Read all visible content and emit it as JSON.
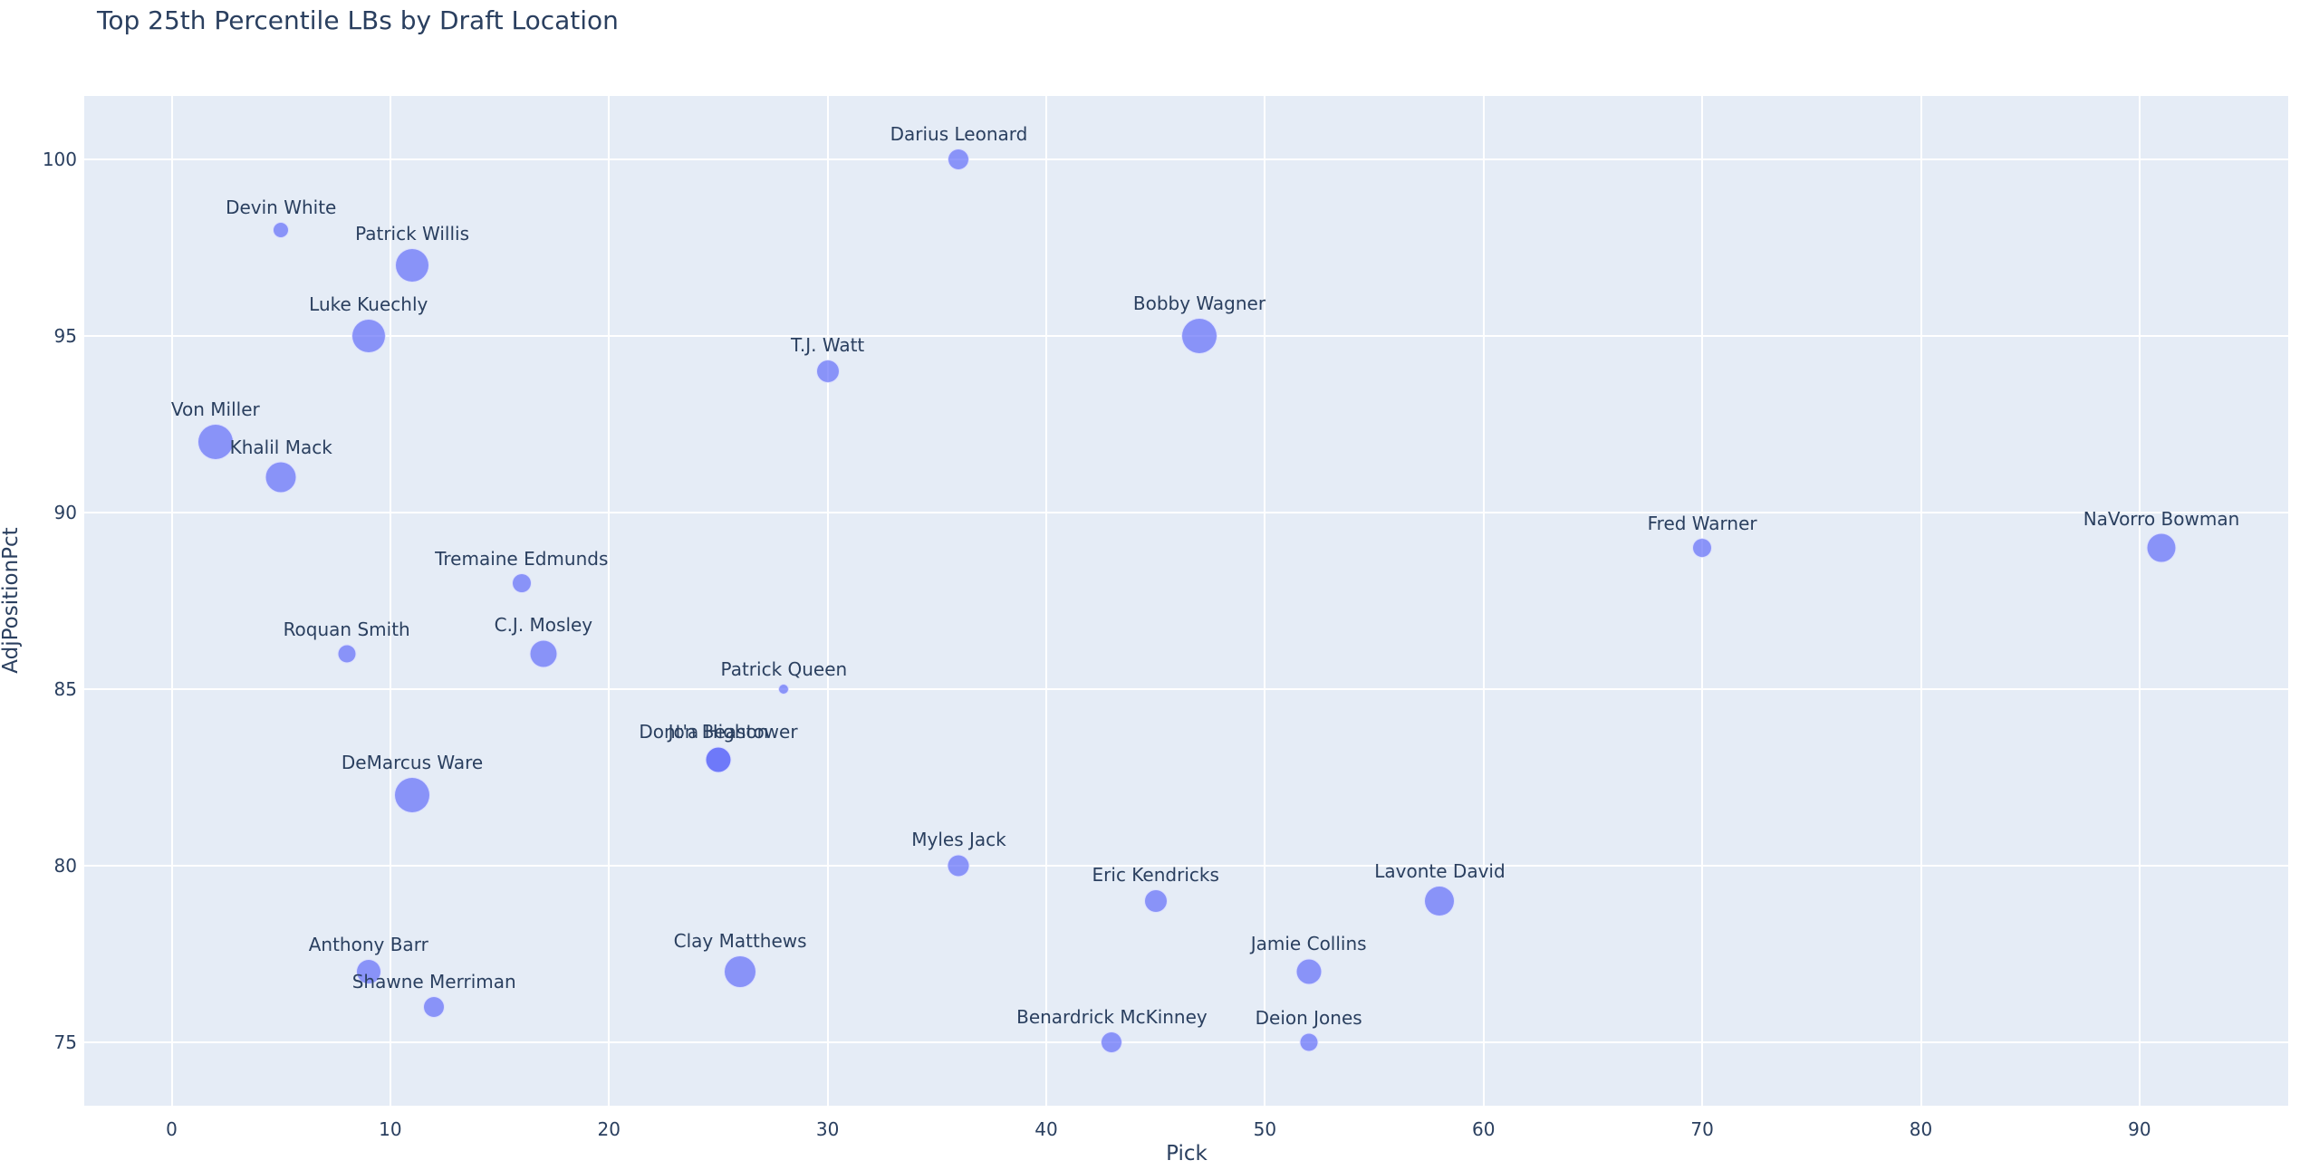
{
  "chart_data": {
    "type": "scatter",
    "title": "Top 25th Percentile LBs by Draft Location",
    "xlabel": "Pick",
    "ylabel": "AdjPositionPct",
    "xlim": [
      -4,
      96.8
    ],
    "ylim": [
      73.2,
      101.8
    ],
    "xticks": [
      0,
      10,
      20,
      30,
      40,
      50,
      60,
      70,
      80,
      90
    ],
    "yticks": [
      75,
      80,
      85,
      90,
      95,
      100
    ],
    "grid": true,
    "legend": "none",
    "marker_color": "#636efa",
    "marker_opacity": 0.7,
    "text_position": "top center",
    "points": [
      {
        "name": "Darius Leonard",
        "x": 36,
        "y": 100,
        "size": 24
      },
      {
        "name": "Devin White",
        "x": 5,
        "y": 98,
        "size": 18
      },
      {
        "name": "Patrick Willis",
        "x": 11,
        "y": 97,
        "size": 38
      },
      {
        "name": "Luke Kuechly",
        "x": 9,
        "y": 95,
        "size": 38
      },
      {
        "name": "Bobby Wagner",
        "x": 47,
        "y": 95,
        "size": 40
      },
      {
        "name": "T.J. Watt",
        "x": 30,
        "y": 94,
        "size": 26
      },
      {
        "name": "Von Miller",
        "x": 2,
        "y": 92,
        "size": 40
      },
      {
        "name": "Khalil Mack",
        "x": 5,
        "y": 91,
        "size": 35
      },
      {
        "name": "Fred Warner",
        "x": 70,
        "y": 89,
        "size": 22
      },
      {
        "name": "NaVorro Bowman",
        "x": 91,
        "y": 89,
        "size": 33
      },
      {
        "name": "Tremaine Edmunds",
        "x": 16,
        "y": 88,
        "size": 22
      },
      {
        "name": "Roquan Smith",
        "x": 8,
        "y": 86,
        "size": 21
      },
      {
        "name": "C.J. Mosley",
        "x": 17,
        "y": 86,
        "size": 31
      },
      {
        "name": "Patrick Queen",
        "x": 28,
        "y": 85,
        "size": 12
      },
      {
        "name": "Dont'a Hightower",
        "x": 25,
        "y": 83,
        "size": 29
      },
      {
        "name": "Jon Beason",
        "x": 25,
        "y": 83,
        "size": 29
      },
      {
        "name": "DeMarcus Ware",
        "x": 11,
        "y": 82,
        "size": 40
      },
      {
        "name": "Myles Jack",
        "x": 36,
        "y": 80,
        "size": 25
      },
      {
        "name": "Eric Kendricks",
        "x": 45,
        "y": 79,
        "size": 26
      },
      {
        "name": "Lavonte David",
        "x": 58,
        "y": 79,
        "size": 34
      },
      {
        "name": "Anthony Barr",
        "x": 9,
        "y": 77,
        "size": 28
      },
      {
        "name": "Clay Matthews",
        "x": 26,
        "y": 77,
        "size": 36
      },
      {
        "name": "Jamie Collins",
        "x": 52,
        "y": 77,
        "size": 29
      },
      {
        "name": "Shawne Merriman",
        "x": 12,
        "y": 76,
        "size": 24
      },
      {
        "name": "Benardrick McKinney",
        "x": 43,
        "y": 75,
        "size": 24
      },
      {
        "name": "Deion Jones",
        "x": 52,
        "y": 75,
        "size": 21
      }
    ]
  }
}
